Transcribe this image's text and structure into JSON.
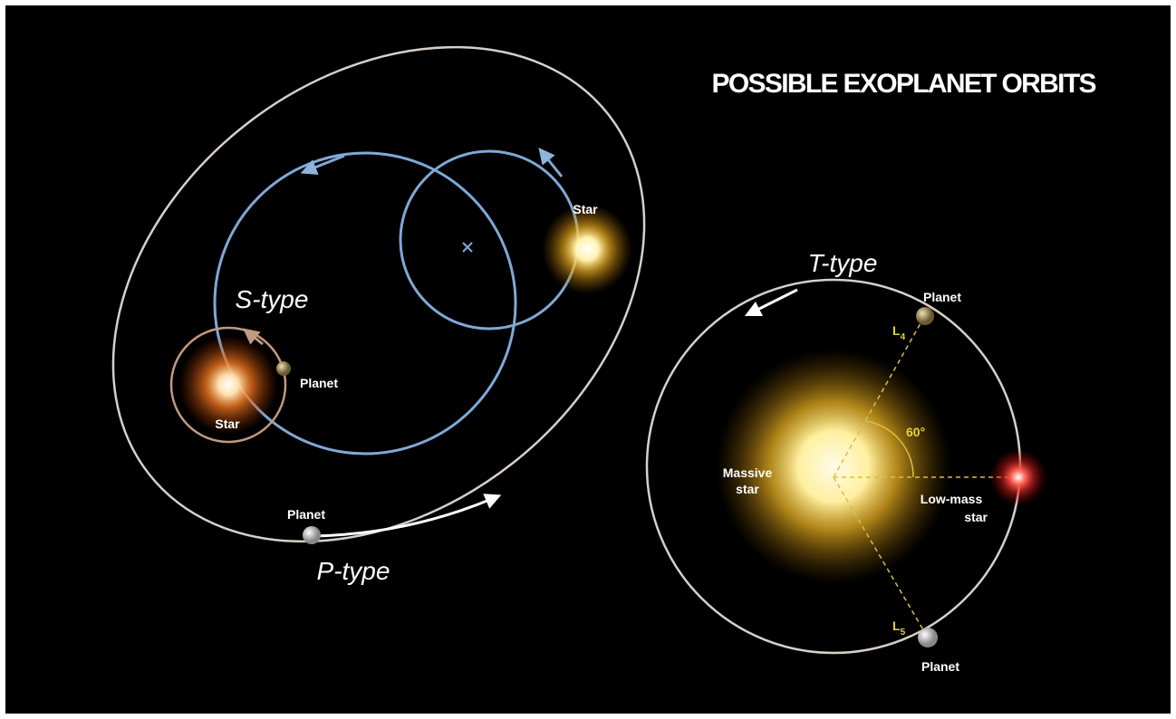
{
  "title": "POSSIBLE EXOPLANET ORBITS",
  "s_type": {
    "label": "S-type",
    "stars": [
      "Star",
      "Star"
    ],
    "planet": "Planet"
  },
  "p_type": {
    "label": "P-type",
    "planet": "Planet"
  },
  "t_type": {
    "label": "T-type",
    "massive_star": [
      "Massive",
      "star"
    ],
    "low_mass_star": [
      "Low-mass",
      "star"
    ],
    "angle": "60°",
    "points": [
      {
        "letter": "L",
        "index": "4",
        "planet": "Planet"
      },
      {
        "letter": "L",
        "index": "5",
        "planet": "Planet"
      }
    ]
  }
}
